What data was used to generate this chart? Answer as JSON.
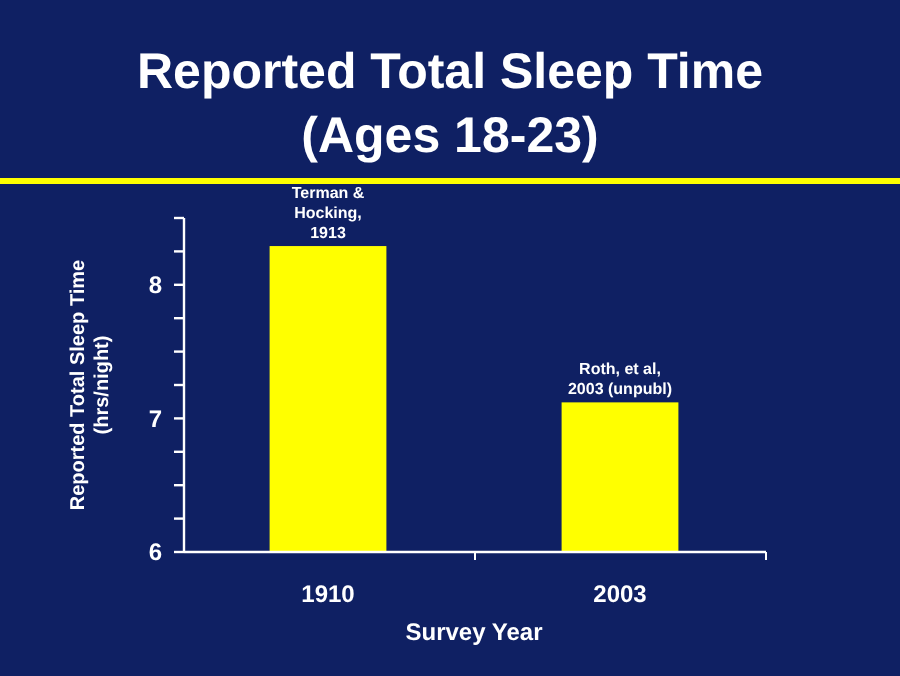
{
  "chart_data": {
    "type": "bar",
    "title": "Reported Total Sleep Time",
    "subtitle": "(Ages 18-23)",
    "xlabel": "Survey Year",
    "ylabel": "Reported Total Sleep Time\n(hrs/night)",
    "categories": [
      "1910",
      "2003"
    ],
    "values": [
      8.29,
      7.12
    ],
    "color": "#ffff00",
    "ylim": [
      6,
      8.5
    ],
    "yticks": [
      6,
      {
        "value": 6.25,
        "label": null
      },
      {
        "value": 6.5,
        "label": null
      },
      {
        "value": 6.75,
        "label": null
      },
      7,
      {
        "value": 7.25,
        "label": null
      },
      {
        "value": 7.5,
        "label": null
      },
      {
        "value": 7.75,
        "label": null
      },
      8,
      {
        "value": 8.25,
        "label": null
      },
      {
        "value": 8.5,
        "label": null
      }
    ],
    "annotations": [
      {
        "text": "Terman &\nHocking,\n1913",
        "x": "1910",
        "y": 8.29
      },
      {
        "text": "Roth, et al,\n2003 (unpubl)",
        "x": "2003",
        "y": 7.12
      }
    ]
  }
}
